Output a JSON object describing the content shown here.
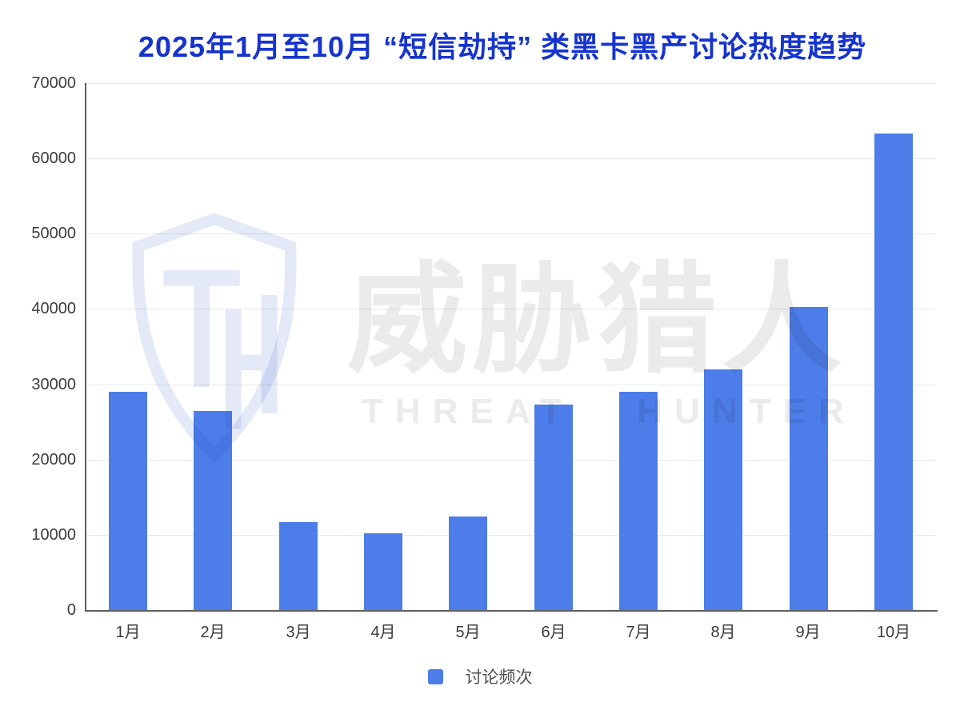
{
  "title": "2025年1月至10月 “短信劫持” 类黑卡黑产讨论热度趋势",
  "chart_data": {
    "type": "bar",
    "title": "2025年1月至10月 “短信劫持” 类黑卡黑产讨论热度趋势",
    "categories": [
      "1月",
      "2月",
      "3月",
      "4月",
      "5月",
      "6月",
      "7月",
      "8月",
      "9月",
      "10月"
    ],
    "series": [
      {
        "name": "讨论频次",
        "values": [
          29000,
          26400,
          11700,
          10200,
          12400,
          27300,
          29000,
          32000,
          40300,
          63300
        ]
      }
    ],
    "xlabel": "",
    "ylabel": "",
    "ylim": [
      0,
      70000
    ],
    "yticks": [
      0,
      10000,
      20000,
      30000,
      40000,
      50000,
      60000,
      70000
    ],
    "grid": true,
    "legend_position": "bottom"
  },
  "legend": {
    "label": "讨论频次"
  },
  "watermark": {
    "zh": "威胁猎人",
    "en": "THREAT HUNTER",
    "logo": "threat-hunter-shield-logo"
  },
  "colors": {
    "title": "#1634cd",
    "bar": "#4c7de8",
    "axis": "#5f5f5f",
    "grid": "#e8e8e8",
    "label": "#3c3c3c",
    "legend_text": "#4e4e4e",
    "watermark_text": "rgba(0,0,0,0.08)",
    "shield": "rgba(37,78,196,0.12)"
  }
}
